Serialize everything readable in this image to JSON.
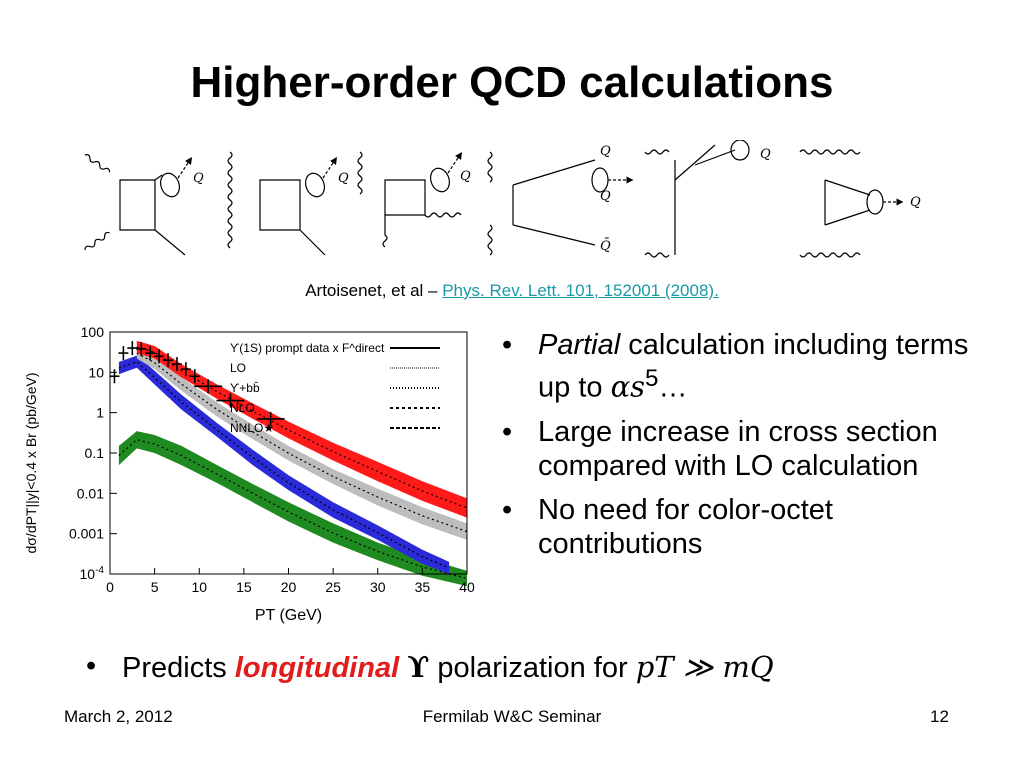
{
  "slide": {
    "title": "Higher-order QCD calculations",
    "citation_author": "Artoisenet, et al – ",
    "citation_link": "Phys. Rev. Lett. 101, 152001 (2008).",
    "bullets": [
      {
        "italic": "Partial",
        "text1": " calculation including terms up to ",
        "math": "αs",
        "sup": "5",
        "text2": "…"
      },
      {
        "text": "Large increase in cross section compared with LO calculation"
      },
      {
        "text": "No need for color-octet contributions"
      }
    ],
    "bottom_bullet": {
      "prefix": "Predicts ",
      "emphasis": "longitudinal",
      "symbol": "ϒ",
      "middle": " polarization for ",
      "math": "pT ≫ mQ"
    },
    "footer": {
      "date": "March 2, 2012",
      "center": "Fermilab W&C Seminar",
      "page": "12"
    }
  },
  "diagram_labels": {
    "q": "Q",
    "qbar": "Q̄"
  },
  "chart_data": {
    "type": "line",
    "xlabel": "P_T (GeV)",
    "ylabel": "dσ/dP_T|_{|y|<0.4} x Br (pb/GeV)",
    "xlim": [
      0,
      40
    ],
    "ylim": [
      0.0001,
      100
    ],
    "log_y": true,
    "x_ticks": [
      "0",
      "5",
      "10",
      "15",
      "20",
      "25",
      "30",
      "35",
      "40"
    ],
    "y_ticks": [
      "100",
      "10",
      "1",
      "0.1",
      "0.01",
      "0.001",
      "10^-4"
    ],
    "legend_position": "top-right",
    "legend": [
      "ϒ(1S) prompt data x F^direct",
      "LO",
      "ϒ+bb̄",
      "NLO",
      "NNLO★"
    ],
    "series": [
      {
        "name": "ϒ(1S) prompt data x F^direct",
        "kind": "data",
        "x": [
          0.5,
          1.5,
          2.5,
          3.5,
          4.5,
          5.5,
          6.5,
          7.5,
          8.5,
          9.5,
          11,
          13.5,
          18
        ],
        "y": [
          8,
          30,
          40,
          38,
          30,
          25,
          20,
          16,
          12,
          8,
          4.5,
          2,
          0.7
        ]
      },
      {
        "name": "LO",
        "color": "#2a2ad8",
        "x": [
          1,
          3,
          5,
          8,
          12,
          16,
          20,
          25,
          30,
          35,
          38
        ],
        "y_low": [
          9,
          13,
          5,
          1.2,
          0.25,
          0.05,
          0.012,
          0.0025,
          0.0007,
          0.00018,
          0.0001
        ],
        "y_high": [
          18,
          26,
          11,
          2.8,
          0.55,
          0.12,
          0.028,
          0.006,
          0.0016,
          0.0004,
          0.0002
        ]
      },
      {
        "name": "ϒ+bb̄",
        "color": "#1f8a1f",
        "x": [
          1,
          3,
          5,
          8,
          12,
          16,
          20,
          25,
          30,
          35,
          40
        ],
        "y_low": [
          0.05,
          0.13,
          0.1,
          0.05,
          0.018,
          0.006,
          0.002,
          0.0006,
          0.00022,
          9e-05,
          5e-05
        ],
        "y_high": [
          0.15,
          0.35,
          0.28,
          0.15,
          0.05,
          0.017,
          0.006,
          0.0018,
          0.0006,
          0.00025,
          0.00012
        ]
      },
      {
        "name": "NLO",
        "color": "#bdbdbd",
        "x": [
          3,
          5,
          8,
          12,
          16,
          20,
          25,
          30,
          35,
          40
        ],
        "y_low": [
          22,
          12,
          3.5,
          0.8,
          0.22,
          0.065,
          0.017,
          0.005,
          0.0017,
          0.0007
        ],
        "y_high": [
          40,
          25,
          7.5,
          1.8,
          0.5,
          0.15,
          0.04,
          0.013,
          0.0045,
          0.0018
        ]
      },
      {
        "name": "NNLO★",
        "color": "#ff1a1a",
        "x": [
          3,
          5,
          8,
          12,
          16,
          20,
          25,
          30,
          35,
          40
        ],
        "y_low": [
          30,
          22,
          7.5,
          2.2,
          0.7,
          0.23,
          0.065,
          0.02,
          0.0065,
          0.0025
        ],
        "y_high": [
          60,
          45,
          16,
          5,
          1.7,
          0.6,
          0.18,
          0.06,
          0.02,
          0.0075
        ]
      }
    ]
  }
}
